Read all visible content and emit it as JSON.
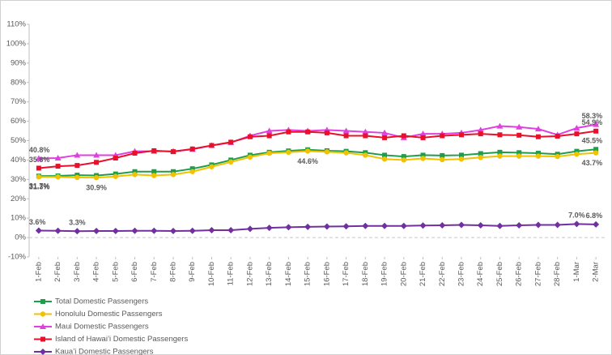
{
  "chart_data": {
    "type": "line",
    "categories": [
      "1-Feb",
      "2-Feb",
      "3-Feb",
      "4-Feb",
      "5-Feb",
      "6-Feb",
      "7-Feb",
      "8-Feb",
      "9-Feb",
      "10-Feb",
      "11-Feb",
      "12-Feb",
      "13-Feb",
      "14-Feb",
      "15-Feb",
      "16-Feb",
      "17-Feb",
      "18-Feb",
      "19-Feb",
      "20-Feb",
      "21-Feb",
      "22-Feb",
      "23-Feb",
      "24-Feb",
      "25-Feb",
      "26-Feb",
      "27-Feb",
      "28-Feb",
      "1-Mar",
      "2-Mar"
    ],
    "ylim": [
      -10,
      110
    ],
    "yticks": [
      {
        "value": -10,
        "label": "-10%"
      },
      {
        "value": 0,
        "label": "0%"
      },
      {
        "value": 10,
        "label": "10%"
      },
      {
        "value": 20,
        "label": "20%"
      },
      {
        "value": 30,
        "label": "30%"
      },
      {
        "value": 40,
        "label": "40%"
      },
      {
        "value": 50,
        "label": "50%"
      },
      {
        "value": 60,
        "label": "60%"
      },
      {
        "value": 70,
        "label": "70%"
      },
      {
        "value": 80,
        "label": "80%"
      },
      {
        "value": 90,
        "label": "90%"
      },
      {
        "value": 100,
        "label": "100%"
      },
      {
        "value": 110,
        "label": "110%"
      }
    ],
    "grid": false,
    "legend": "bottom-left",
    "series": [
      {
        "name": "Total Domestic Passengers",
        "color": "#1f9e4a",
        "marker": "square",
        "values": [
          31.7,
          31.8,
          32.2,
          32.0,
          32.8,
          34.0,
          34.0,
          34.0,
          35.5,
          37.5,
          40.0,
          42.5,
          44.0,
          44.7,
          45.3,
          44.8,
          44.5,
          43.8,
          42.5,
          41.8,
          42.5,
          42.3,
          42.5,
          43.3,
          44.0,
          43.8,
          43.5,
          43.0,
          44.5,
          45.5
        ],
        "value_labels": [
          "31.7%",
          null,
          null,
          null,
          null,
          null,
          null,
          null,
          null,
          null,
          null,
          null,
          null,
          null,
          null,
          null,
          null,
          null,
          null,
          null,
          null,
          null,
          null,
          null,
          null,
          null,
          null,
          null,
          null,
          "45.5%"
        ]
      },
      {
        "name": "Honolulu Domestic Passengers",
        "color": "#f2c200",
        "marker": "circle",
        "values": [
          31.3,
          31.3,
          31.0,
          30.9,
          31.5,
          32.5,
          32.0,
          32.5,
          34.0,
          36.5,
          39.0,
          41.5,
          43.5,
          44.0,
          44.6,
          44.2,
          43.7,
          42.5,
          40.5,
          40.0,
          40.8,
          40.2,
          40.5,
          41.3,
          42.0,
          42.0,
          42.0,
          41.8,
          43.0,
          43.7
        ],
        "value_labels": [
          "31.3%",
          null,
          null,
          "30.9%",
          null,
          null,
          null,
          null,
          null,
          null,
          null,
          null,
          null,
          null,
          "44.6%",
          null,
          null,
          null,
          null,
          null,
          null,
          null,
          null,
          null,
          null,
          null,
          null,
          null,
          null,
          "43.7%"
        ]
      },
      {
        "name": "Maui Domestic Passengers",
        "color": "#e040e0",
        "marker": "triangle",
        "values": [
          40.8,
          41.0,
          42.5,
          42.5,
          42.5,
          44.5,
          44.5,
          44.5,
          45.5,
          47.5,
          49.0,
          52.5,
          55.0,
          55.5,
          55.0,
          55.5,
          55.0,
          54.5,
          54.0,
          51.5,
          53.5,
          53.5,
          54.0,
          55.5,
          57.5,
          57.0,
          56.0,
          53.0,
          56.5,
          58.3
        ],
        "value_labels": [
          "40.8%",
          null,
          null,
          null,
          null,
          null,
          null,
          null,
          null,
          null,
          null,
          null,
          null,
          null,
          null,
          null,
          null,
          null,
          null,
          null,
          null,
          null,
          null,
          null,
          null,
          null,
          null,
          null,
          null,
          "58.3%"
        ]
      },
      {
        "name": "Island of Hawai’i Domestic Passengers",
        "color": "#e8102a",
        "marker": "square",
        "values": [
          35.8,
          36.8,
          37.2,
          38.8,
          41.0,
          43.5,
          44.8,
          44.3,
          45.7,
          47.5,
          49.2,
          52.0,
          52.5,
          54.5,
          54.5,
          54.0,
          52.5,
          52.5,
          51.5,
          52.5,
          51.5,
          52.5,
          53.0,
          53.5,
          53.0,
          52.8,
          52.0,
          52.3,
          53.5,
          54.9
        ],
        "value_labels": [
          "35.8%",
          null,
          null,
          null,
          null,
          null,
          null,
          null,
          null,
          null,
          null,
          null,
          null,
          null,
          null,
          null,
          null,
          null,
          null,
          null,
          null,
          null,
          null,
          null,
          null,
          null,
          null,
          null,
          null,
          "54.9%"
        ]
      },
      {
        "name": "Kaua’i Domestic Passengers",
        "color": "#7030a0",
        "marker": "diamond",
        "values": [
          3.6,
          3.5,
          3.3,
          3.4,
          3.4,
          3.5,
          3.5,
          3.4,
          3.5,
          3.8,
          3.8,
          4.5,
          5.0,
          5.3,
          5.5,
          5.7,
          5.8,
          6.0,
          6.0,
          6.0,
          6.2,
          6.3,
          6.5,
          6.3,
          6.0,
          6.3,
          6.5,
          6.5,
          7.0,
          6.8
        ],
        "value_labels": [
          "3.6%",
          null,
          "3.3%",
          null,
          null,
          null,
          null,
          null,
          null,
          null,
          null,
          null,
          null,
          null,
          null,
          null,
          null,
          null,
          null,
          null,
          null,
          null,
          null,
          null,
          null,
          null,
          null,
          null,
          "7.0%",
          "6.8%"
        ]
      }
    ]
  }
}
